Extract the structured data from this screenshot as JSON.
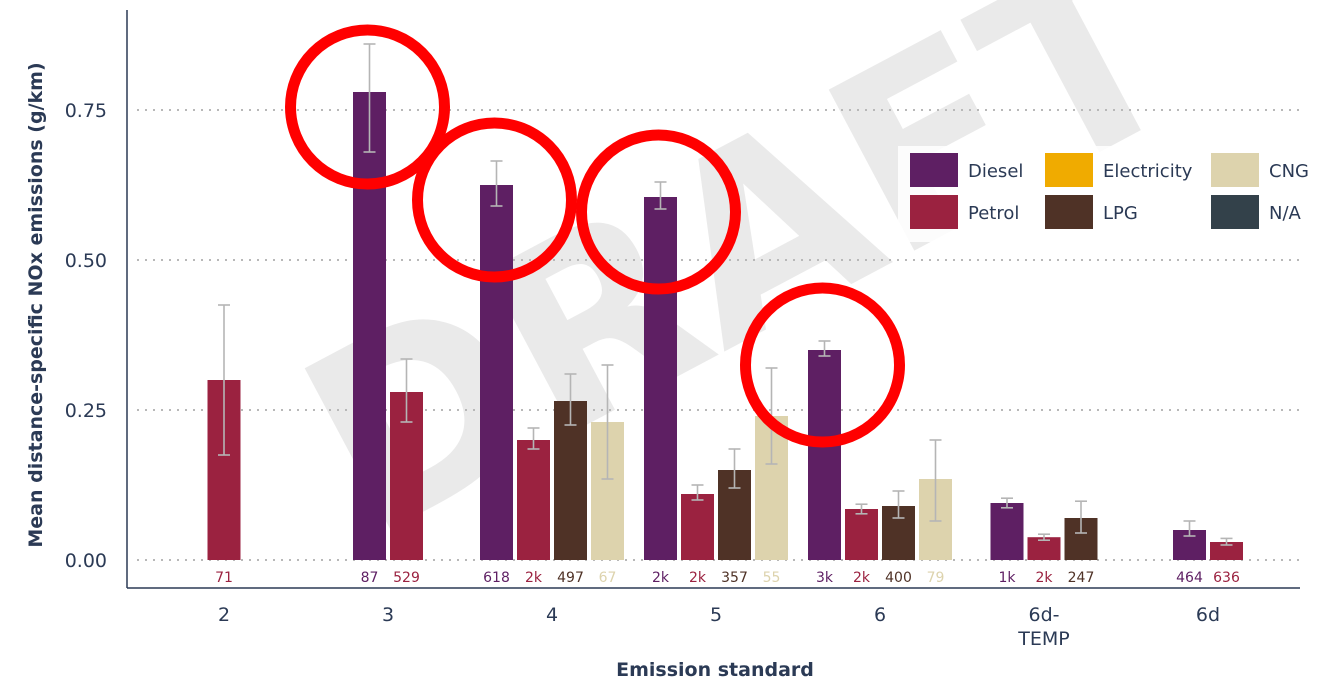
{
  "chart_data": {
    "type": "bar",
    "xlabel": "Emission standard",
    "ylabel": "Mean distance-specific NOx emissions (g/km)",
    "ylim": [
      -0.04,
      0.9
    ],
    "yticks": [
      "0.00",
      "0.25",
      "0.50",
      "0.75"
    ],
    "grid": "horizontal-dotted",
    "legend_position": "top-right",
    "watermark": "DRAFT",
    "categories": [
      {
        "label": [
          "2"
        ],
        "bars": [
          {
            "fuel": "Petrol",
            "value": 0.3,
            "err_low": 0.175,
            "err_high": 0.425,
            "count": "71"
          }
        ]
      },
      {
        "label": [
          "3"
        ],
        "bars": [
          {
            "fuel": "Diesel",
            "value": 0.78,
            "err_low": 0.68,
            "err_high": 0.86,
            "count": "87"
          },
          {
            "fuel": "Petrol",
            "value": 0.28,
            "err_low": 0.23,
            "err_high": 0.335,
            "count": "529"
          }
        ]
      },
      {
        "label": [
          "4"
        ],
        "bars": [
          {
            "fuel": "Diesel",
            "value": 0.625,
            "err_low": 0.59,
            "err_high": 0.665,
            "count": "618"
          },
          {
            "fuel": "Petrol",
            "value": 0.2,
            "err_low": 0.185,
            "err_high": 0.22,
            "count": "2k"
          },
          {
            "fuel": "LPG",
            "value": 0.265,
            "err_low": 0.225,
            "err_high": 0.31,
            "count": "497"
          },
          {
            "fuel": "CNG",
            "value": 0.23,
            "err_low": 0.135,
            "err_high": 0.325,
            "count": "67"
          }
        ]
      },
      {
        "label": [
          "5"
        ],
        "bars": [
          {
            "fuel": "Diesel",
            "value": 0.605,
            "err_low": 0.585,
            "err_high": 0.63,
            "count": "2k"
          },
          {
            "fuel": "Petrol",
            "value": 0.11,
            "err_low": 0.1,
            "err_high": 0.125,
            "count": "2k"
          },
          {
            "fuel": "LPG",
            "value": 0.15,
            "err_low": 0.12,
            "err_high": 0.185,
            "count": "357"
          },
          {
            "fuel": "CNG",
            "value": 0.24,
            "err_low": 0.16,
            "err_high": 0.32,
            "count": "55"
          }
        ]
      },
      {
        "label": [
          "6"
        ],
        "bars": [
          {
            "fuel": "Diesel",
            "value": 0.35,
            "err_low": 0.34,
            "err_high": 0.365,
            "count": "3k"
          },
          {
            "fuel": "Petrol",
            "value": 0.085,
            "err_low": 0.077,
            "err_high": 0.093,
            "count": "2k"
          },
          {
            "fuel": "LPG",
            "value": 0.09,
            "err_low": 0.07,
            "err_high": 0.115,
            "count": "400"
          },
          {
            "fuel": "CNG",
            "value": 0.135,
            "err_low": 0.065,
            "err_high": 0.2,
            "count": "79"
          }
        ]
      },
      {
        "label": [
          "6d-",
          "TEMP"
        ],
        "bars": [
          {
            "fuel": "Diesel",
            "value": 0.095,
            "err_low": 0.087,
            "err_high": 0.103,
            "count": "1k"
          },
          {
            "fuel": "Petrol",
            "value": 0.038,
            "err_low": 0.033,
            "err_high": 0.043,
            "count": "2k"
          },
          {
            "fuel": "LPG",
            "value": 0.07,
            "err_low": 0.045,
            "err_high": 0.098,
            "count": "247"
          }
        ]
      },
      {
        "label": [
          "6d"
        ],
        "bars": [
          {
            "fuel": "Diesel",
            "value": 0.05,
            "err_low": 0.04,
            "err_high": 0.065,
            "count": "464"
          },
          {
            "fuel": "Petrol",
            "value": 0.03,
            "err_low": 0.025,
            "err_high": 0.036,
            "count": "636"
          }
        ]
      }
    ],
    "series": [
      {
        "name": "Diesel",
        "color": "#5e1f63"
      },
      {
        "name": "Petrol",
        "color": "#9b2240"
      },
      {
        "name": "Electricity",
        "color": "#f0ab00"
      },
      {
        "name": "LPG",
        "color": "#4f3226"
      },
      {
        "name": "CNG",
        "color": "#ddd3ad"
      },
      {
        "name": "N/A",
        "color": "#33414a"
      }
    ],
    "highlight_circles": [
      {
        "category": "3",
        "fuel": "Diesel",
        "color": "#ff0000"
      },
      {
        "category": "4",
        "fuel": "Diesel",
        "color": "#ff0000"
      },
      {
        "category": "5",
        "fuel": "Diesel",
        "color": "#ff0000"
      },
      {
        "category": "6",
        "fuel": "Diesel",
        "color": "#ff0000"
      }
    ]
  }
}
